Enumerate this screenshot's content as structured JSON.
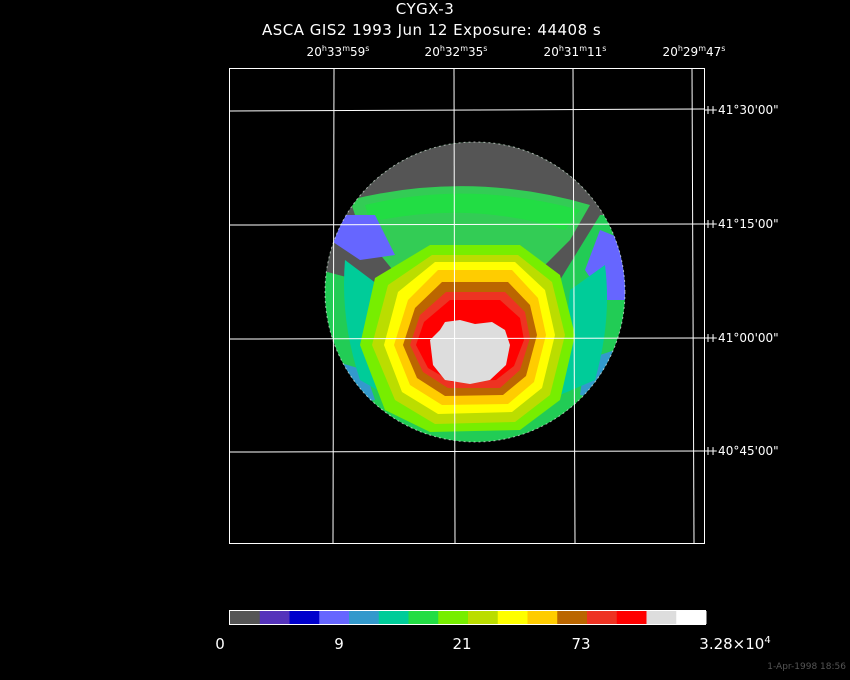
{
  "title": "CYGX-3",
  "subtitle": "ASCA GIS2   1993 Jun 12    Exposure: 44408 s",
  "ra_ticks": [
    {
      "h": "20",
      "m": "33",
      "s": "59"
    },
    {
      "h": "20",
      "m": "32",
      "s": "35"
    },
    {
      "h": "20",
      "m": "31",
      "s": "11"
    },
    {
      "h": "20",
      "m": "29",
      "s": "47"
    }
  ],
  "dec_ticks": [
    "+41°30'00\"",
    "+41°15'00\"",
    "+41°00'00\"",
    "+40°45'00\""
  ],
  "colorbar": {
    "colors": [
      "#555555",
      "#5533bb",
      "#0000cc",
      "#6666ff",
      "#3399cc",
      "#00cc99",
      "#22dd44",
      "#77ee00",
      "#bbdd00",
      "#ffff00",
      "#ffcc00",
      "#bb6600",
      "#ee3322",
      "#ff0000",
      "#dddddd",
      "#ffffff"
    ],
    "labels": [
      {
        "text": "0"
      },
      {
        "text": "9"
      },
      {
        "text": "21"
      },
      {
        "text": "73"
      },
      {
        "text": "3.28×10",
        "sup": "4"
      }
    ]
  },
  "timestamp": "1-Apr-1998 18:56"
}
